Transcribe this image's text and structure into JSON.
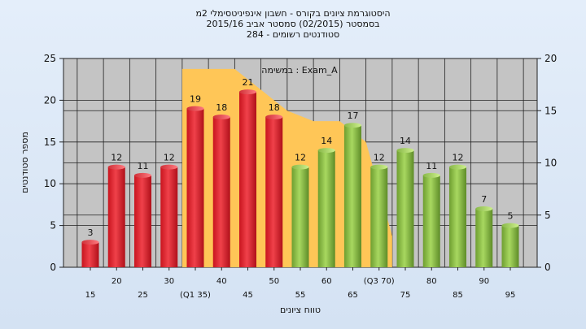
{
  "chart_data": {
    "type": "bar",
    "title": "היסטוגרמת ציונים בקורס - חשבון אינפיניטסימלי 2מ",
    "subtitle_1": "בסמסטר (02/2015) סמסטר אביב 2015/16",
    "subtitle_2": "סטודנטים רשומים - 284",
    "annotation": "במשימה : Exam_A",
    "xlabel": "טווח ציונים",
    "ylabel": "מספר סטודנטים",
    "ylim": [
      0,
      25
    ],
    "ylim_right": [
      0,
      20
    ],
    "yticks": [
      0,
      5,
      10,
      15,
      20,
      25
    ],
    "yticks_right": [
      0,
      5,
      10,
      15,
      20
    ],
    "grid": true,
    "x_tick_labels_upper": [
      "20",
      "30",
      "40",
      "50",
      "60",
      "(Q3 70)",
      "80",
      "90"
    ],
    "x_tick_labels_lower": [
      "15",
      "25",
      "(Q1 35)",
      "45",
      "55",
      "65",
      "75",
      "85",
      "95"
    ],
    "categories": [
      "15",
      "20",
      "25",
      "30",
      "35",
      "40",
      "45",
      "50",
      "55",
      "60",
      "65",
      "70",
      "75",
      "80",
      "85",
      "90",
      "95"
    ],
    "values": [
      3,
      12,
      11,
      12,
      19,
      18,
      21,
      18,
      12,
      14,
      17,
      12,
      14,
      11,
      12,
      7,
      5
    ],
    "bar_colors": [
      "red",
      "red",
      "red",
      "red",
      "red",
      "red",
      "red",
      "red",
      "green",
      "green",
      "green",
      "green",
      "green",
      "green",
      "green",
      "green",
      "green"
    ],
    "interquartile_band": {
      "start_category": "35",
      "end_category": "70",
      "right_axis_values": [
        19,
        19,
        19,
        17,
        15,
        14,
        14,
        12,
        3
      ]
    },
    "colors": {
      "red_bar": "#e8323a",
      "green_bar": "#96c850",
      "band": "#ffc657",
      "plot_background": "#c4c4c4"
    }
  }
}
